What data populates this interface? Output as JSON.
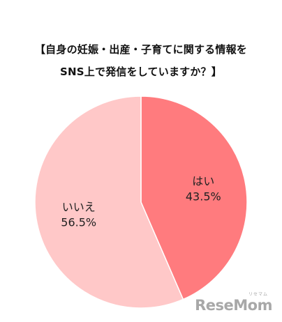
{
  "chart_data": {
    "type": "pie",
    "title_lines": [
      "【自身の妊娠・出産・子育てに関する情報を",
      "SNS上で発信をしていますか？】"
    ],
    "slices": [
      {
        "label": "はい",
        "value": 43.5,
        "value_label": "43.5%",
        "color": "#ff7b7e"
      },
      {
        "label": "いいえ",
        "value": 56.5,
        "value_label": "56.5%",
        "color": "#ffc8c8"
      }
    ],
    "start": "12 o'clock",
    "direction": "clockwise"
  },
  "watermark": {
    "logo_text": "ReseMom",
    "sub_text": "リセマム"
  }
}
